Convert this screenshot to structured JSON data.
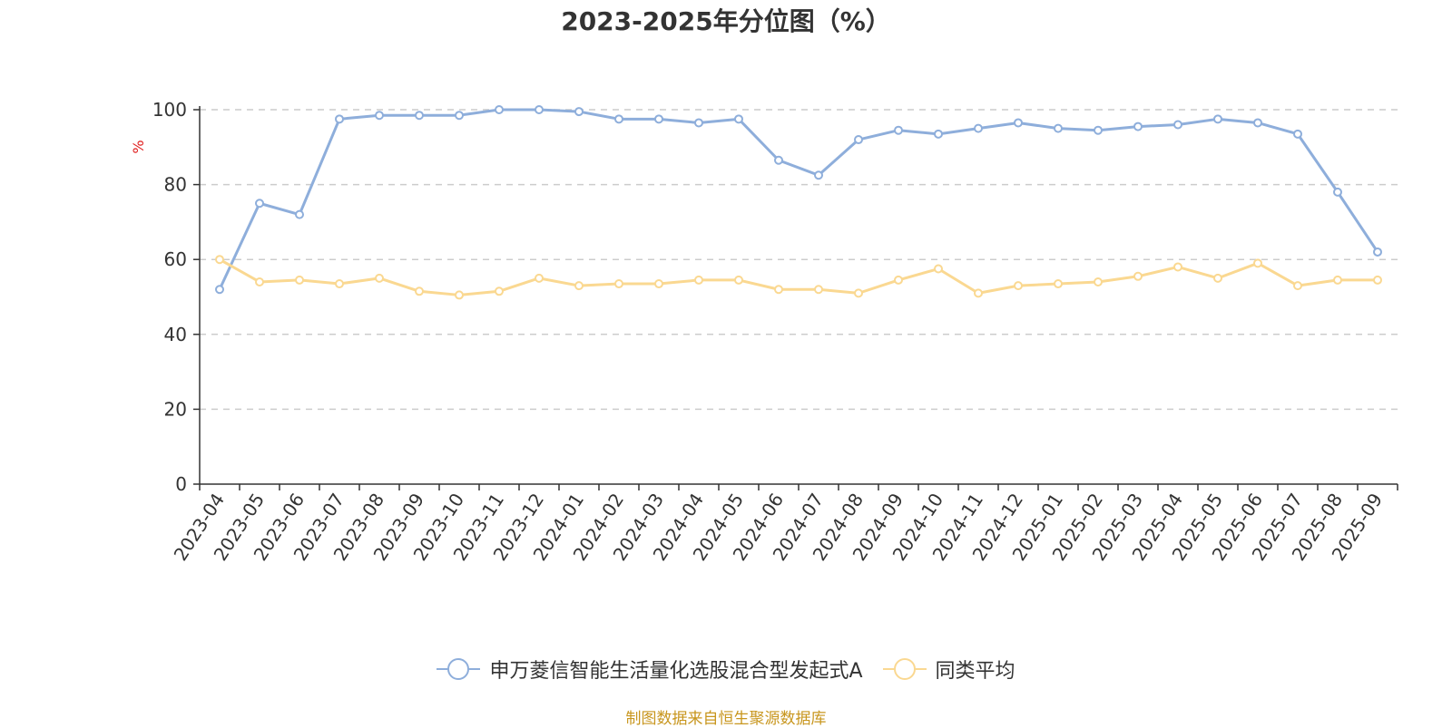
{
  "chart_data": {
    "type": "line",
    "title": "2023-2025年分位图（%）",
    "ylabel": "%",
    "ylim": [
      0,
      100
    ],
    "yticks": [
      0,
      20,
      40,
      60,
      80,
      100
    ],
    "grid": "horizontal-dashed",
    "legend_position": "bottom",
    "categories": [
      "2023-04",
      "2023-05",
      "2023-06",
      "2023-07",
      "2023-08",
      "2023-09",
      "2023-10",
      "2023-11",
      "2023-12",
      "2024-01",
      "2024-02",
      "2024-03",
      "2024-04",
      "2024-05",
      "2024-06",
      "2024-07",
      "2024-08",
      "2024-09",
      "2024-10",
      "2024-11",
      "2024-12",
      "2025-01",
      "2025-02",
      "2025-03",
      "2025-04",
      "2025-05",
      "2025-06",
      "2025-07",
      "2025-08",
      "2025-09"
    ],
    "series": [
      {
        "name": "申万菱信智能生活量化选股混合型发起式A",
        "color": "#8eaedb",
        "values": [
          52,
          75,
          72,
          97.5,
          98.5,
          98.5,
          98.5,
          100,
          100,
          99.5,
          97.5,
          97.5,
          96.5,
          97.5,
          86.5,
          82.5,
          92,
          94.5,
          93.5,
          95,
          96.5,
          95,
          94.5,
          95.5,
          96,
          97.5,
          96.5,
          93.5,
          78,
          62
        ]
      },
      {
        "name": "同类平均",
        "color": "#fad891",
        "values": [
          60,
          54,
          54.5,
          53.5,
          55,
          51.5,
          50.5,
          51.5,
          55,
          53,
          53.5,
          53.5,
          54.5,
          54.5,
          52,
          52,
          51,
          54.5,
          57.5,
          51,
          53,
          53.5,
          54,
          55.5,
          58,
          55,
          59,
          53,
          54.5,
          54.5
        ]
      }
    ]
  },
  "source_note": "制图数据来自恒生聚源数据库"
}
